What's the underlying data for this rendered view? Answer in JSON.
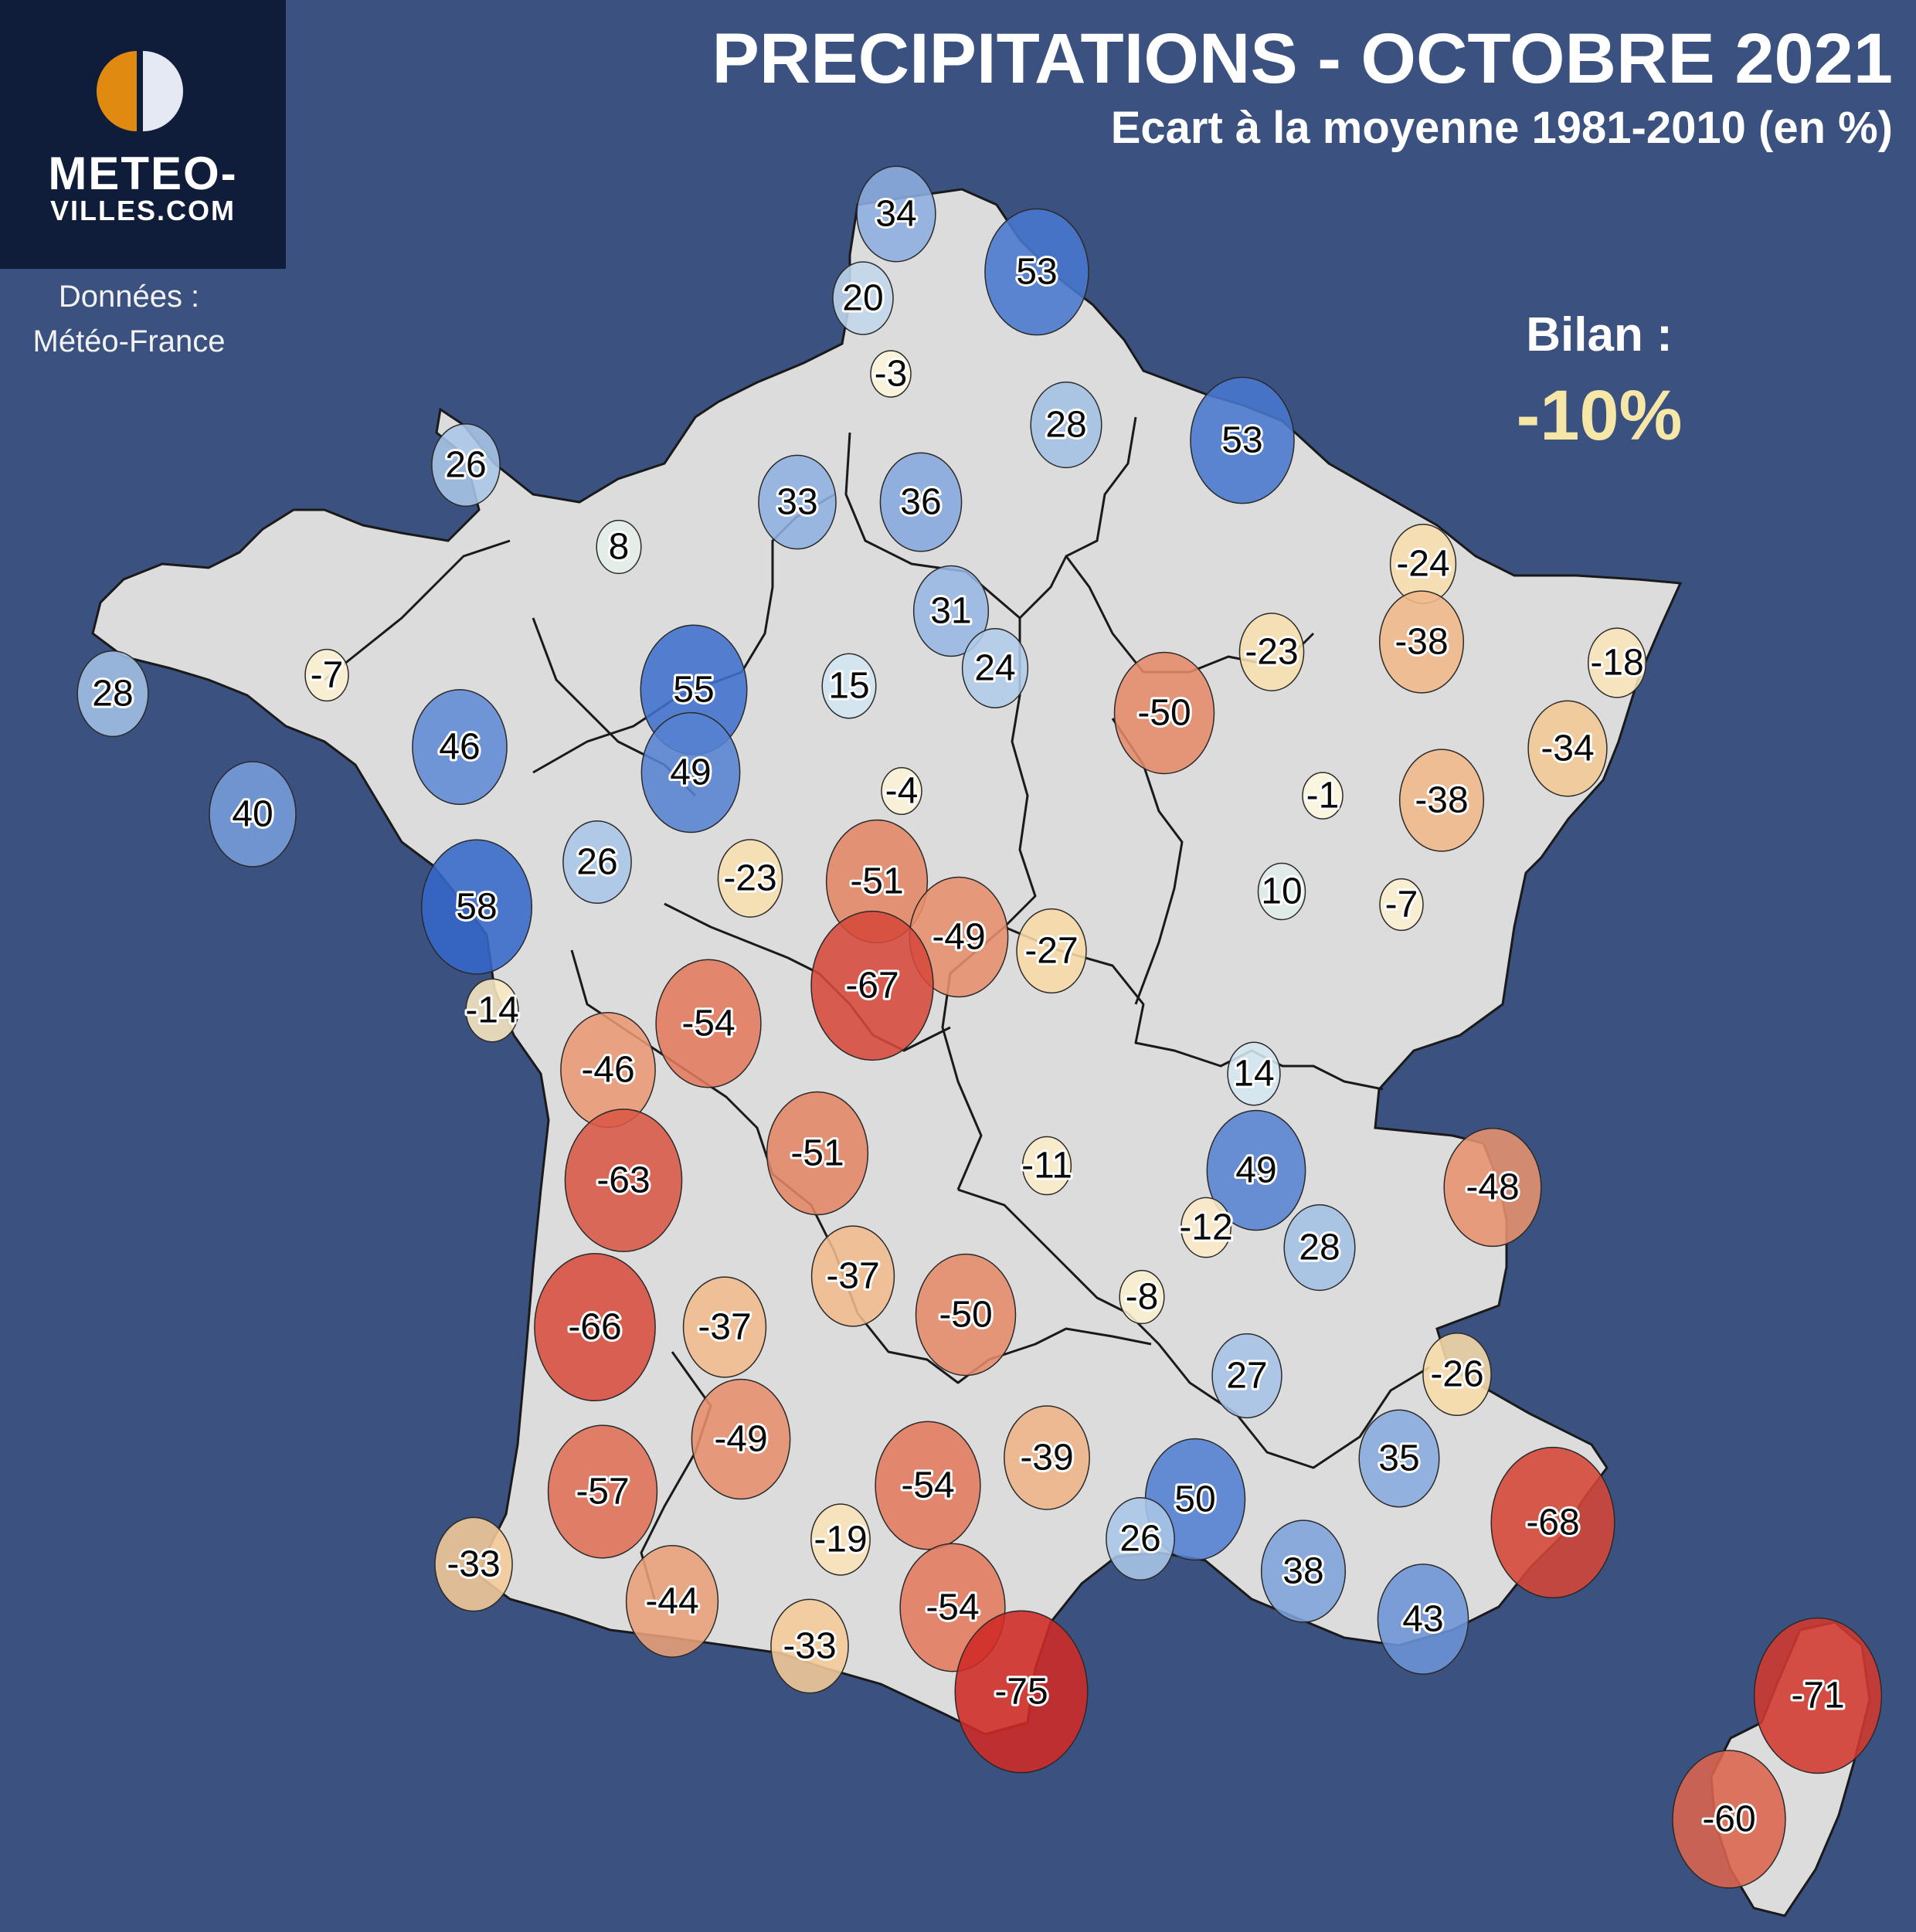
{
  "header": {
    "title": "PRECIPITATIONS - OCTOBRE 2021",
    "subtitle": "Ecart à la moyenne 1981-2010 (en %)"
  },
  "logo": {
    "line1": "METEO-",
    "line2": "VILLES.COM",
    "colors": {
      "left": "#e08a12",
      "right": "#e4e9f3",
      "background": "#0f1d3a"
    }
  },
  "source": {
    "line1": "Données :",
    "line2": "Météo-France"
  },
  "summary": {
    "label": "Bilan :",
    "value": "-10%"
  },
  "colors": {
    "background": "#3b5180",
    "land": "#dcdcdc",
    "border": "#1a1a1a",
    "positive_strong": "#2e62c8",
    "positive_light": "#d2e6f1",
    "neutral": "#fdf9e0",
    "negative_light": "#f7d7a0",
    "negative_strong": "#cf2a24"
  },
  "stations": [
    {
      "value": 34
    },
    {
      "value": 20
    },
    {
      "value": 53
    },
    {
      "value": -3
    },
    {
      "value": 28
    },
    {
      "value": 53
    },
    {
      "value": 26
    },
    {
      "value": 33
    },
    {
      "value": 36
    },
    {
      "value": 8
    },
    {
      "value": 31
    },
    {
      "value": 24
    },
    {
      "value": 15
    },
    {
      "value": -24
    },
    {
      "value": -38
    },
    {
      "value": -23
    },
    {
      "value": -18
    },
    {
      "value": -50
    },
    {
      "value": 28
    },
    {
      "value": -7
    },
    {
      "value": 55
    },
    {
      "value": 46
    },
    {
      "value": 49
    },
    {
      "value": -34
    },
    {
      "value": 40
    },
    {
      "value": -4
    },
    {
      "value": -38
    },
    {
      "value": -1
    },
    {
      "value": 26
    },
    {
      "value": -23
    },
    {
      "value": -51
    },
    {
      "value": 58
    },
    {
      "value": -49
    },
    {
      "value": -27
    },
    {
      "value": 10
    },
    {
      "value": -7
    },
    {
      "value": -67
    },
    {
      "value": -14
    },
    {
      "value": -54
    },
    {
      "value": -46
    },
    {
      "value": 14
    },
    {
      "value": -63
    },
    {
      "value": -51
    },
    {
      "value": -11
    },
    {
      "value": 49
    },
    {
      "value": -48
    },
    {
      "value": -12
    },
    {
      "value": 28
    },
    {
      "value": -37
    },
    {
      "value": -50
    },
    {
      "value": -8
    },
    {
      "value": -66
    },
    {
      "value": -37
    },
    {
      "value": 27
    },
    {
      "value": -26
    },
    {
      "value": -49
    },
    {
      "value": -39
    },
    {
      "value": 35
    },
    {
      "value": -57
    },
    {
      "value": -54
    },
    {
      "value": 50
    },
    {
      "value": -68
    },
    {
      "value": -19
    },
    {
      "value": 26
    },
    {
      "value": -33
    },
    {
      "value": 38
    },
    {
      "value": -44
    },
    {
      "value": -54
    },
    {
      "value": 43
    },
    {
      "value": -33
    },
    {
      "value": -75
    },
    {
      "value": -71
    },
    {
      "value": -60
    }
  ]
}
